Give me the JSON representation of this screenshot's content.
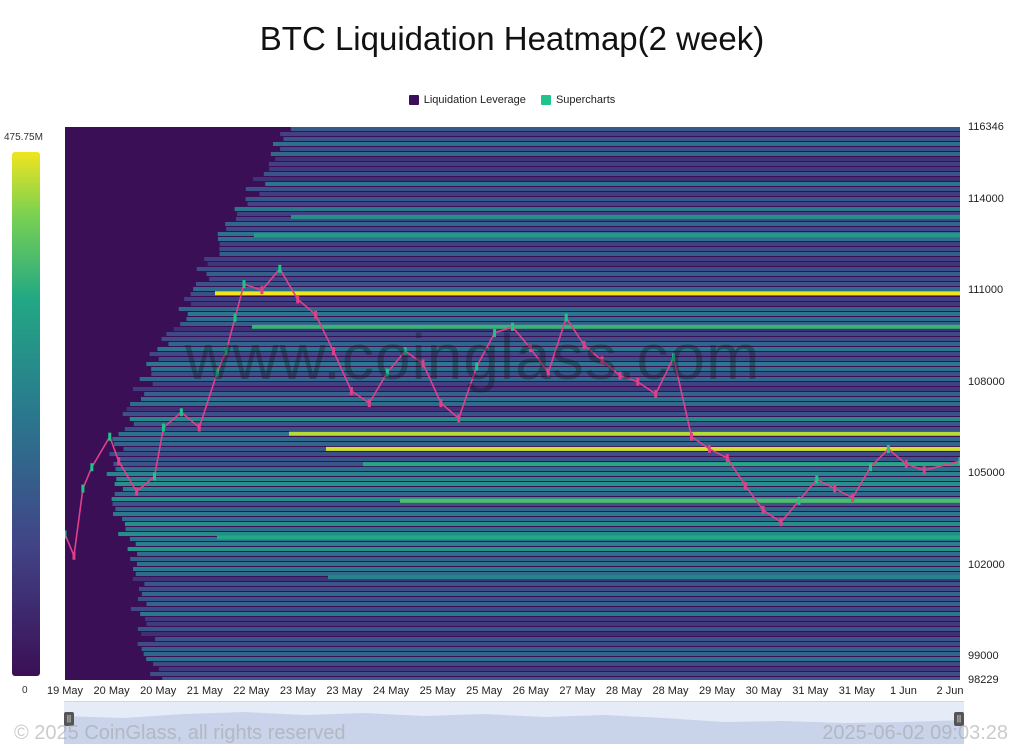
{
  "title": "BTC Liquidation Heatmap(2 week)",
  "legend": [
    {
      "label": "Liquidation Leverage",
      "color": "#3b1058"
    },
    {
      "label": "Supercharts",
      "color": "#1fc48a"
    }
  ],
  "colorbar": {
    "max_label": "475.75M",
    "min_label": "0"
  },
  "watermark": "www.coinglass.com",
  "footer": {
    "copyright": "© 2025 CoinGlass, all rights reserved",
    "timestamp": "2025-06-02 09:03:28"
  },
  "chart_data": {
    "type": "heatmap",
    "title": "BTC Liquidation Heatmap(2 week)",
    "y_axis": {
      "min": 98229,
      "max": 116346,
      "ticks": [
        116346,
        114000,
        111000,
        108000,
        105000,
        102000,
        99000,
        98229
      ]
    },
    "x_axis": {
      "ticks": [
        "19 May",
        "20 May",
        "20 May",
        "21 May",
        "22 May",
        "23 May",
        "23 May",
        "24 May",
        "25 May",
        "25 May",
        "26 May",
        "27 May",
        "28 May",
        "28 May",
        "29 May",
        "30 May",
        "31 May",
        "31 May",
        "1 Jun",
        "2 Jun"
      ]
    },
    "colorscale": {
      "min": 0,
      "max_label": "475.75M",
      "colors": [
        "#3b0f55",
        "#414487",
        "#2a788e",
        "#22a884",
        "#7ad151",
        "#f0e51f"
      ]
    },
    "liquidation_levels": [
      {
        "price": 110900,
        "intensity": 1.0
      },
      {
        "price": 109800,
        "intensity": 0.65
      },
      {
        "price": 106300,
        "intensity": 0.9
      },
      {
        "price": 105800,
        "intensity": 0.95
      },
      {
        "price": 105300,
        "intensity": 0.6
      },
      {
        "price": 104100,
        "intensity": 0.7
      },
      {
        "price": 102900,
        "intensity": 0.6
      },
      {
        "price": 112800,
        "intensity": 0.55
      },
      {
        "price": 113400,
        "intensity": 0.5
      },
      {
        "price": 101600,
        "intensity": 0.45
      }
    ],
    "price_series": {
      "name": "",
      "points": [
        [
          0,
          103000
        ],
        [
          0.01,
          102300
        ],
        [
          0.02,
          104500
        ],
        [
          0.03,
          105200
        ],
        [
          0.05,
          106200
        ],
        [
          0.06,
          105400
        ],
        [
          0.08,
          104400
        ],
        [
          0.1,
          104900
        ],
        [
          0.11,
          106500
        ],
        [
          0.13,
          107000
        ],
        [
          0.15,
          106500
        ],
        [
          0.17,
          108300
        ],
        [
          0.18,
          109000
        ],
        [
          0.19,
          110100
        ],
        [
          0.2,
          111200
        ],
        [
          0.22,
          111000
        ],
        [
          0.24,
          111700
        ],
        [
          0.26,
          110700
        ],
        [
          0.28,
          110200
        ],
        [
          0.3,
          109000
        ],
        [
          0.32,
          107700
        ],
        [
          0.34,
          107300
        ],
        [
          0.36,
          108300
        ],
        [
          0.38,
          109000
        ],
        [
          0.4,
          108600
        ],
        [
          0.42,
          107300
        ],
        [
          0.44,
          106800
        ],
        [
          0.46,
          108500
        ],
        [
          0.48,
          109600
        ],
        [
          0.5,
          109800
        ],
        [
          0.52,
          109100
        ],
        [
          0.54,
          108300
        ],
        [
          0.56,
          110100
        ],
        [
          0.58,
          109200
        ],
        [
          0.6,
          108700
        ],
        [
          0.62,
          108200
        ],
        [
          0.64,
          108000
        ],
        [
          0.66,
          107600
        ],
        [
          0.68,
          108800
        ],
        [
          0.7,
          106200
        ],
        [
          0.72,
          105800
        ],
        [
          0.74,
          105500
        ],
        [
          0.76,
          104600
        ],
        [
          0.78,
          103800
        ],
        [
          0.8,
          103400
        ],
        [
          0.82,
          104100
        ],
        [
          0.84,
          104800
        ],
        [
          0.86,
          104500
        ],
        [
          0.88,
          104200
        ],
        [
          0.9,
          105200
        ],
        [
          0.92,
          105800
        ],
        [
          0.94,
          105300
        ],
        [
          0.96,
          105100
        ],
        [
          1.0,
          105400
        ]
      ]
    }
  }
}
